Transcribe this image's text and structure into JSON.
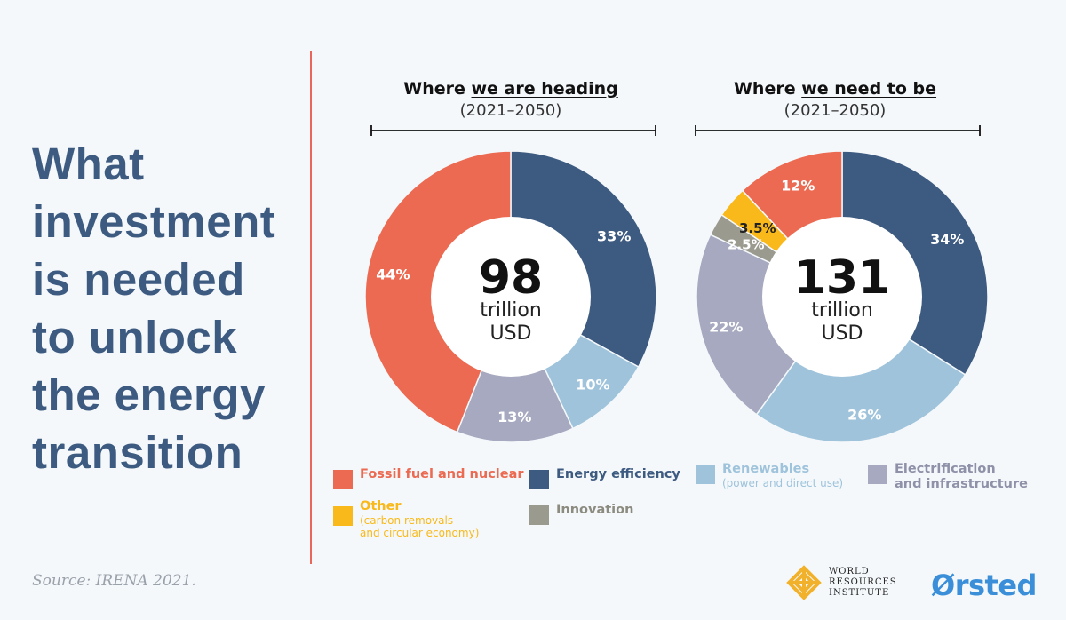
{
  "headline": [
    "What",
    "investment",
    "is needed",
    "to unlock",
    "the energy",
    "transition"
  ],
  "source": "Source: IRENA 2021.",
  "colors": {
    "fossil": "#ec6a51",
    "efficiency": "#3d5a80",
    "renewables": "#9ec3db",
    "electrification": "#a6a9bf",
    "other": "#f9b91a",
    "innovation": "#9b9a8f",
    "headline": "#3d5a80",
    "divider": "#e8665a"
  },
  "chart_data": [
    {
      "type": "pie",
      "title_prefix": "Where ",
      "title_underlined": "we are heading",
      "period": "(2021–2050)",
      "center_value": "98",
      "center_unit_1": "trillion",
      "center_unit_2": "USD",
      "slices": [
        {
          "key": "efficiency",
          "label": "33%",
          "value": 33
        },
        {
          "key": "renewables",
          "label": "10%",
          "value": 10
        },
        {
          "key": "electrification",
          "label": "13%",
          "value": 13
        },
        {
          "key": "fossil",
          "label": "44%",
          "value": 44
        }
      ]
    },
    {
      "type": "pie",
      "title_prefix": "Where ",
      "title_underlined": "we need to be",
      "period": "(2021–2050)",
      "center_value": "131",
      "center_unit_1": "trillion",
      "center_unit_2": "USD",
      "slices": [
        {
          "key": "efficiency",
          "label": "34%",
          "value": 34
        },
        {
          "key": "renewables",
          "label": "26%",
          "value": 26
        },
        {
          "key": "electrification",
          "label": "22%",
          "value": 22
        },
        {
          "key": "innovation",
          "label": "2.5%",
          "value": 2.5
        },
        {
          "key": "other",
          "label": "3.5%",
          "value": 3.5
        },
        {
          "key": "fossil",
          "label": "12%",
          "value": 12
        }
      ]
    }
  ],
  "legend": {
    "fossil": {
      "label": "Fossil fuel and nuclear",
      "sub": ""
    },
    "efficiency": {
      "label": "Energy efficiency",
      "sub": ""
    },
    "renewables": {
      "label": "Renewables",
      "sub": "(power and direct use)"
    },
    "electrification": {
      "label": "Electrification",
      "label2": "and infrastructure",
      "sub": ""
    },
    "other": {
      "label": "Other",
      "sub": "(carbon removals",
      "sub2": "and circular economy)"
    },
    "innovation": {
      "label": "Innovation",
      "sub": ""
    }
  },
  "logos": {
    "wri_1": "WORLD",
    "wri_2": "RESOURCES",
    "wri_3": "INSTITUTE",
    "orsted": "Ørsted"
  }
}
